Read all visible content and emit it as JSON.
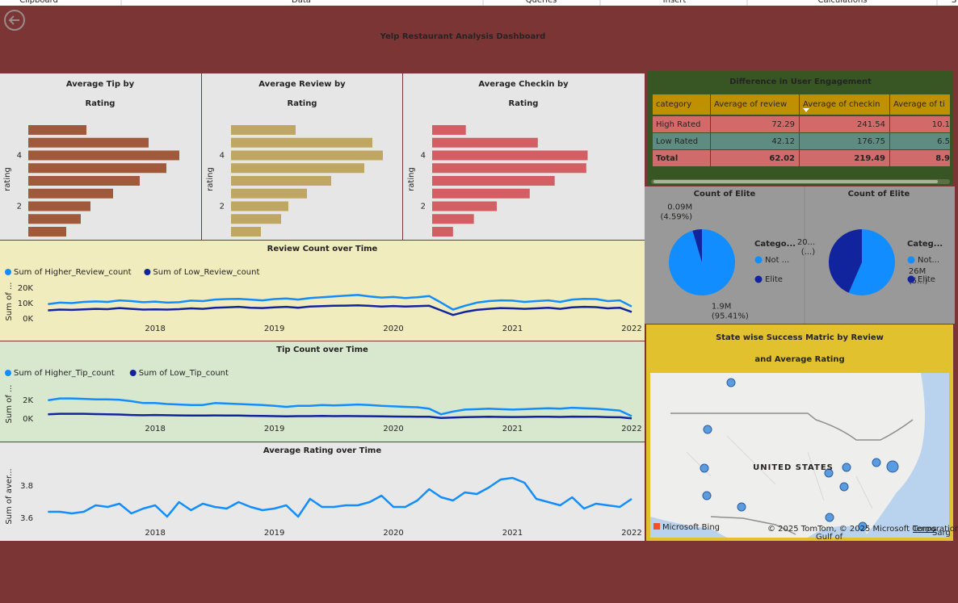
{
  "ribbon": [
    "Clipboard",
    "Data",
    "Queries",
    "Insert",
    "Calculations",
    "S"
  ],
  "header": {
    "title": "Yelp Restaurant Analysis Dashboard"
  },
  "table": {
    "title": "Difference in User Engagement",
    "columns": [
      "category",
      "Average of review",
      "Average of checkin",
      "Average of ti"
    ],
    "rows": [
      [
        "High Rated",
        "72.29",
        "241.54",
        "10.1"
      ],
      [
        "Low Rated",
        "42.12",
        "176.75",
        "6.5"
      ],
      [
        "Total",
        "62.02",
        "219.49",
        "8.9"
      ]
    ]
  },
  "map": {
    "title": "State wise Success Matric by Review and Average Rating",
    "country_label": "UNITED STATES",
    "logo": "Microsoft Bing",
    "attribution": "© 2025 TomTom, © 2025 Microsoft Corporation",
    "terms": "Terms",
    "water_labels": [
      "Gulf of",
      "Sarg"
    ]
  },
  "chart_data": [
    {
      "type": "bar",
      "title": "Average Tip by Rating",
      "y_label": "rating",
      "color": "#a0593b",
      "categories": [
        null,
        null,
        "4",
        null,
        null,
        null,
        "2",
        null,
        null
      ],
      "values": [
        72,
        149,
        187,
        171,
        138,
        105,
        77,
        65,
        47
      ],
      "xlim": [
        0,
        200
      ]
    },
    {
      "type": "bar",
      "title": "Average Review by Rating",
      "y_label": "rating",
      "color": "#bfa662",
      "categories": [
        null,
        null,
        "4",
        null,
        null,
        null,
        "2",
        null,
        null
      ],
      "values": [
        80,
        175,
        188,
        165,
        124,
        94,
        71,
        62,
        37
      ],
      "xlim": [
        0,
        200
      ]
    },
    {
      "type": "bar",
      "title": "Average Checkin by Rating",
      "y_label": "rating",
      "color": "#d35f64",
      "categories": [
        null,
        null,
        "4",
        null,
        null,
        null,
        "2",
        null,
        null
      ],
      "values": [
        50,
        157,
        231,
        229,
        182,
        145,
        96,
        62,
        31
      ],
      "xlim": [
        0,
        240
      ]
    },
    {
      "type": "line",
      "title": "Review Count over Time",
      "y_label": "Sum of ...",
      "x": [
        2017.1,
        2017.2,
        2017.3,
        2017.4,
        2017.5,
        2017.6,
        2017.7,
        2017.8,
        2017.9,
        2018,
        2018.1,
        2018.2,
        2018.3,
        2018.4,
        2018.5,
        2018.6,
        2018.7,
        2018.8,
        2018.9,
        2019,
        2019.1,
        2019.2,
        2019.3,
        2019.4,
        2019.5,
        2019.6,
        2019.7,
        2019.8,
        2019.9,
        2020,
        2020.1,
        2020.2,
        2020.3,
        2020.4,
        2020.5,
        2020.6,
        2020.7,
        2020.8,
        2020.9,
        2021,
        2021.1,
        2021.2,
        2021.3,
        2021.4,
        2021.5,
        2021.6,
        2021.7,
        2021.8,
        2021.9,
        2022
      ],
      "xlim": [
        2017.07,
        2022
      ],
      "xticks": [
        2018,
        2019,
        2020,
        2021,
        2022
      ],
      "ylim": [
        0,
        22500
      ],
      "yticks": [
        {
          "value": 0,
          "label": "0K"
        },
        {
          "value": 10000,
          "label": "10K"
        },
        {
          "value": 20000,
          "label": "20K"
        }
      ],
      "series": [
        {
          "name": "Sum of Higher_Review_count",
          "color": "#118dff",
          "values": [
            9500,
            10500,
            10200,
            11000,
            11300,
            11000,
            12000,
            11500,
            10800,
            11200,
            10500,
            10800,
            11800,
            11500,
            12500,
            12800,
            13000,
            12500,
            12000,
            12800,
            13200,
            12500,
            13500,
            14000,
            14500,
            15000,
            15500,
            14500,
            13800,
            14200,
            13500,
            14000,
            14800,
            10500,
            6000,
            8500,
            10500,
            11500,
            12000,
            11800,
            11000,
            11500,
            12000,
            11000,
            12500,
            13000,
            12800,
            11500,
            12000,
            8000
          ]
        },
        {
          "name": "Sum of Low_Review_count",
          "color": "#12239e",
          "values": [
            5500,
            6000,
            5800,
            6200,
            6500,
            6300,
            7000,
            6500,
            6000,
            6200,
            6000,
            6300,
            6800,
            6500,
            7200,
            7500,
            7800,
            7200,
            7000,
            7500,
            7800,
            7200,
            8000,
            8200,
            8500,
            8600,
            8800,
            8400,
            8000,
            8300,
            8000,
            8200,
            8500,
            5500,
            2500,
            4500,
            5800,
            6500,
            7000,
            6800,
            6500,
            6800,
            7200,
            6500,
            7500,
            7800,
            7600,
            6800,
            7200,
            4500
          ]
        }
      ]
    },
    {
      "type": "line",
      "title": "Tip Count over Time",
      "y_label": "Sum of ...",
      "x": [
        2017.1,
        2017.2,
        2017.3,
        2017.4,
        2017.5,
        2017.6,
        2017.7,
        2017.8,
        2017.9,
        2018,
        2018.1,
        2018.2,
        2018.3,
        2018.4,
        2018.5,
        2018.6,
        2018.7,
        2018.8,
        2018.9,
        2019,
        2019.1,
        2019.2,
        2019.3,
        2019.4,
        2019.5,
        2019.6,
        2019.7,
        2019.8,
        2019.9,
        2020,
        2020.1,
        2020.2,
        2020.3,
        2020.4,
        2020.5,
        2020.6,
        2020.7,
        2020.8,
        2020.9,
        2021,
        2021.1,
        2021.2,
        2021.3,
        2021.4,
        2021.5,
        2021.6,
        2021.7,
        2021.8,
        2021.9,
        2022
      ],
      "xlim": [
        2017.07,
        2022
      ],
      "xticks": [
        2018,
        2019,
        2020,
        2021,
        2022
      ],
      "ylim": [
        0,
        3200
      ],
      "yticks": [
        {
          "value": 0,
          "label": "0K"
        },
        {
          "value": 2000,
          "label": "2K"
        }
      ],
      "series": [
        {
          "name": "Sum of Higher_Tip_count",
          "color": "#118dff",
          "values": [
            2000,
            2200,
            2200,
            2150,
            2100,
            2100,
            2050,
            1900,
            1700,
            1700,
            1600,
            1550,
            1500,
            1500,
            1700,
            1650,
            1600,
            1550,
            1500,
            1400,
            1300,
            1400,
            1400,
            1500,
            1450,
            1500,
            1550,
            1500,
            1400,
            1350,
            1300,
            1250,
            1100,
            500,
            800,
            1000,
            1050,
            1100,
            1050,
            1000,
            1050,
            1100,
            1150,
            1100,
            1200,
            1150,
            1100,
            1000,
            900,
            300
          ]
        },
        {
          "name": "Sum of Low_Tip_count",
          "color": "#12239e",
          "values": [
            500,
            550,
            550,
            550,
            520,
            500,
            480,
            420,
            400,
            420,
            400,
            380,
            370,
            360,
            380,
            370,
            360,
            340,
            320,
            300,
            280,
            300,
            300,
            320,
            300,
            310,
            300,
            290,
            280,
            260,
            250,
            240,
            230,
            100,
            150,
            200,
            220,
            230,
            220,
            210,
            220,
            230,
            240,
            220,
            250,
            240,
            230,
            200,
            180,
            60
          ]
        }
      ]
    },
    {
      "type": "line",
      "title": "Average Rating over Time",
      "y_label": "Sum of aver...",
      "x": [
        2017.1,
        2017.2,
        2017.3,
        2017.4,
        2017.5,
        2017.6,
        2017.7,
        2017.8,
        2017.9,
        2018,
        2018.1,
        2018.2,
        2018.3,
        2018.4,
        2018.5,
        2018.6,
        2018.7,
        2018.8,
        2018.9,
        2019,
        2019.1,
        2019.2,
        2019.3,
        2019.4,
        2019.5,
        2019.6,
        2019.7,
        2019.8,
        2019.9,
        2020,
        2020.1,
        2020.2,
        2020.3,
        2020.4,
        2020.5,
        2020.6,
        2020.7,
        2020.8,
        2020.9,
        2021,
        2021.1,
        2021.2,
        2021.3,
        2021.4,
        2021.5,
        2021.6,
        2021.7,
        2021.8,
        2021.9,
        2022
      ],
      "xlim": [
        2017.07,
        2022
      ],
      "xticks": [
        2018,
        2019,
        2020,
        2021,
        2022
      ],
      "ylim": [
        3.57,
        3.9
      ],
      "yticks": [
        3.6,
        3.8
      ],
      "series": [
        {
          "color": "#118dff",
          "values": [
            3.64,
            3.64,
            3.63,
            3.64,
            3.68,
            3.67,
            3.69,
            3.63,
            3.66,
            3.68,
            3.61,
            3.7,
            3.65,
            3.69,
            3.67,
            3.66,
            3.7,
            3.67,
            3.65,
            3.66,
            3.68,
            3.61,
            3.72,
            3.67,
            3.67,
            3.68,
            3.68,
            3.7,
            3.74,
            3.67,
            3.67,
            3.71,
            3.78,
            3.73,
            3.71,
            3.76,
            3.75,
            3.79,
            3.84,
            3.85,
            3.82,
            3.72,
            3.7,
            3.68,
            3.73,
            3.66,
            3.69,
            3.68,
            3.67,
            3.72
          ]
        }
      ]
    },
    {
      "type": "pie",
      "title": "Count of Elite",
      "legend_title": "Catego...",
      "categories": [
        "Not ...",
        "Elite"
      ],
      "colors": [
        "#118dff",
        "#12239e"
      ],
      "values": [
        1904000,
        91600
      ],
      "value_labels": [
        "1.9M (95.41%)",
        "0.09M (4.59%)"
      ]
    },
    {
      "type": "pie",
      "title": "Count of Elite",
      "legend_title": "Categ...",
      "categories": [
        "Not...",
        "Elite"
      ],
      "colors": [
        "#118dff",
        "#12239e"
      ],
      "values": [
        26000000,
        20000000
      ],
      "value_labels": [
        "26M (5...)",
        "20... (...)"
      ]
    }
  ]
}
